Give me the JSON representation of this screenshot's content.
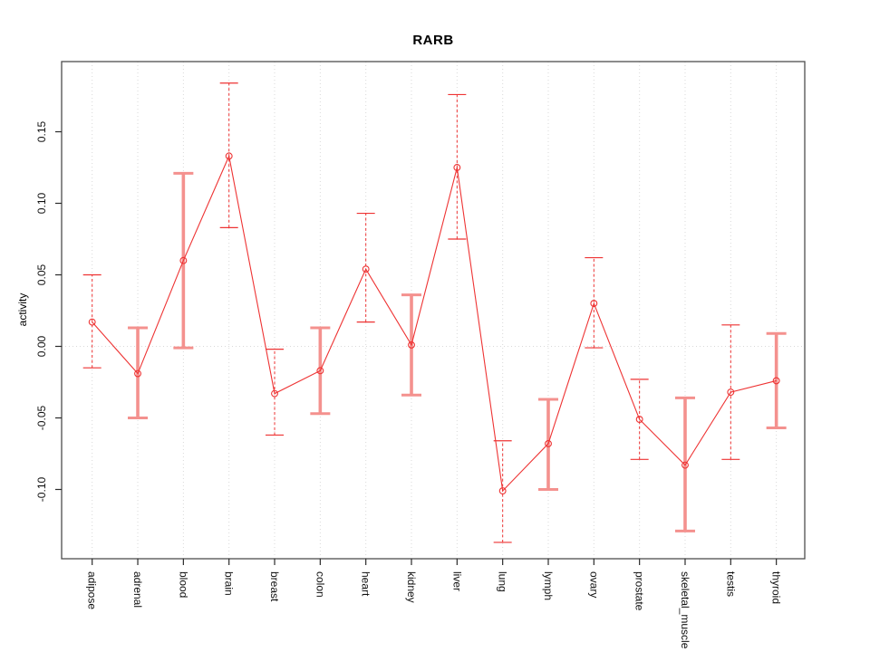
{
  "figure_title": "RARB",
  "chart_data": {
    "type": "line",
    "title": "RARB",
    "xlabel": "",
    "ylabel": "activity",
    "ylim": [
      -0.148,
      0.199
    ],
    "yticks": [
      "-0.10",
      "-0.05",
      "0.00",
      "0.05",
      "0.10",
      "0.15"
    ],
    "ytick_values": [
      -0.1,
      -0.05,
      0.0,
      0.05,
      0.1,
      0.15
    ],
    "grid": {
      "vertical_dotted_at_each_category": true,
      "horizontal_dotted_at_zero": true
    },
    "legend_position": "none",
    "categories": [
      "adipose",
      "adrenal",
      "blood",
      "brain",
      "breast",
      "colon",
      "heart",
      "kidney",
      "liver",
      "lung",
      "lymph",
      "ovary",
      "prostate",
      "skeletal_muscle",
      "testis",
      "thyroid"
    ],
    "series": [
      {
        "name": "activity",
        "marker": "open-circle",
        "values": [
          0.017,
          -0.019,
          0.06,
          0.133,
          -0.033,
          -0.017,
          0.054,
          0.001,
          0.125,
          -0.101,
          -0.068,
          0.03,
          -0.051,
          -0.083,
          -0.032,
          -0.024
        ],
        "ci_low": [
          -0.015,
          -0.05,
          -0.001,
          0.083,
          -0.062,
          -0.047,
          0.017,
          -0.034,
          0.075,
          -0.137,
          -0.1,
          -0.001,
          -0.079,
          -0.129,
          -0.079,
          -0.057
        ],
        "ci_high": [
          0.05,
          0.013,
          0.121,
          0.184,
          -0.002,
          0.013,
          0.093,
          0.036,
          0.176,
          -0.066,
          -0.037,
          0.062,
          -0.023,
          -0.036,
          0.015,
          0.009
        ],
        "errorbar_style": [
          "thin-dashed",
          "thick-pink",
          "thick-pink",
          "thin-dashed",
          "thin-dashed",
          "thick-pink",
          "thin-dashed",
          "thick-pink",
          "thin-dashed",
          "thin-dashed",
          "thick-pink",
          "thin-dashed",
          "thin-dashed",
          "thick-pink",
          "thin-dashed",
          "thick-pink"
        ]
      }
    ],
    "colors": {
      "line_and_points": "#ee3333",
      "errorbar_thin": "#ee3333",
      "errorbar_thick": "#f4918e",
      "gridline": "#d9d9d9",
      "axis_box": "#4d4d4d",
      "tick": "#2a2a2a",
      "text": "#111111",
      "background": "#ffffff"
    }
  }
}
